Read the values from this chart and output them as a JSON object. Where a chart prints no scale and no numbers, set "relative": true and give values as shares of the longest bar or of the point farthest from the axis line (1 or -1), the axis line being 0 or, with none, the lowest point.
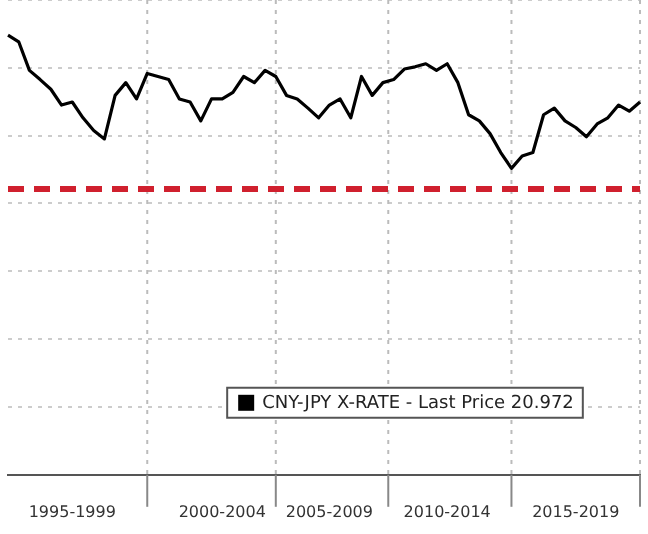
{
  "chart_data": {
    "type": "line",
    "relative": true,
    "grid": true,
    "legend": "bottom",
    "line_style": "solid",
    "marker": "none",
    "categories": [
      null,
      null,
      null,
      null,
      null,
      null,
      "1995-1999",
      null,
      null,
      null,
      null,
      null,
      null,
      null,
      null,
      null,
      null,
      null,
      null,
      null,
      "2000-2004",
      null,
      null,
      null,
      null,
      null,
      null,
      null,
      null,
      null,
      "2005-2009",
      null,
      null,
      null,
      null,
      null,
      null,
      null,
      null,
      null,
      null,
      "2010-2014",
      null,
      null,
      null,
      null,
      null,
      null,
      null,
      null,
      null,
      null,
      null,
      "2015-2019",
      null,
      null,
      null,
      null,
      null,
      null
    ],
    "series": [
      {
        "name": "CNY-JPY X-RATE - Last Price 20.972",
        "color": "#000000",
        "values": [
          1.0,
          0.985,
          0.92,
          0.899,
          0.877,
          0.841,
          0.848,
          0.812,
          0.783,
          0.764,
          0.863,
          0.892,
          0.855,
          0.913,
          0.906,
          0.899,
          0.855,
          0.848,
          0.805,
          0.855,
          0.855,
          0.87,
          0.906,
          0.892,
          0.92,
          0.906,
          0.863,
          0.855,
          0.834,
          0.812,
          0.841,
          0.855,
          0.812,
          0.906,
          0.863,
          0.892,
          0.899,
          0.923,
          0.928,
          0.935,
          0.92,
          0.935,
          0.892,
          0.819,
          0.805,
          0.776,
          0.733,
          0.697,
          0.725,
          0.733,
          0.819,
          0.834,
          0.805,
          0.79,
          0.769,
          0.798,
          0.812,
          0.841,
          0.827,
          0.848
        ]
      }
    ],
    "ref_lines": [
      {
        "axis": "y",
        "value": 0.65,
        "color": "#d0202e",
        "line_style": "dashed"
      }
    ]
  }
}
